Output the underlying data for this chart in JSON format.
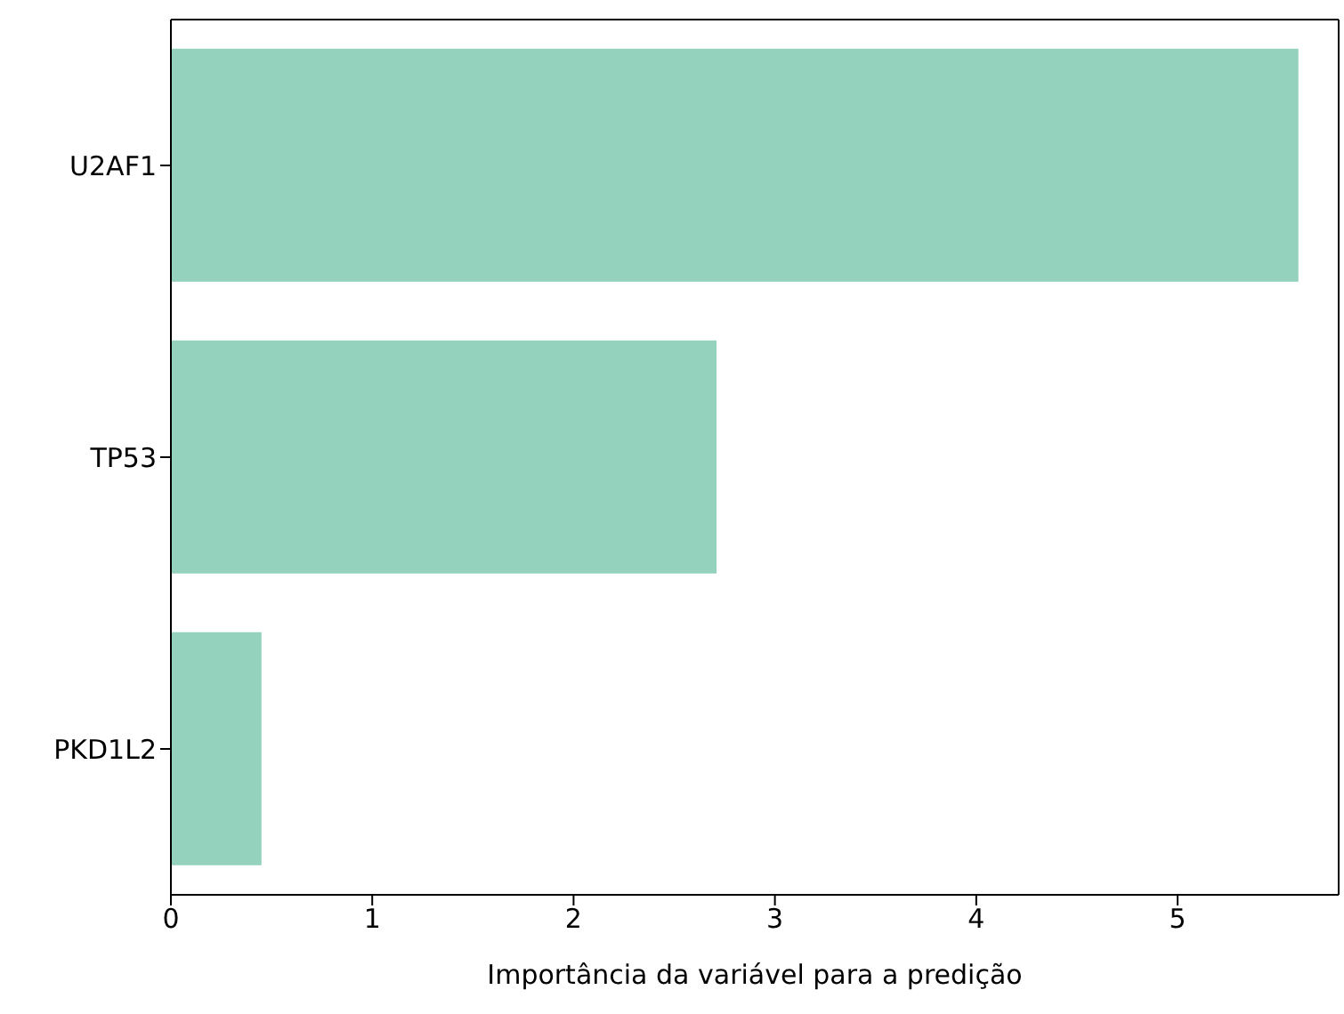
{
  "chart_data": {
    "type": "bar",
    "orientation": "horizontal",
    "xlabel": "Importância da variável para a predição",
    "categories": [
      "U2AF1",
      "TP53",
      "PKD1L2"
    ],
    "values": [
      5.6,
      2.71,
      0.45
    ],
    "color": "#95d2bd",
    "xlim": [
      0,
      5.8
    ],
    "xticks": [
      0,
      1,
      2,
      3,
      4,
      5
    ],
    "grid": false
  }
}
